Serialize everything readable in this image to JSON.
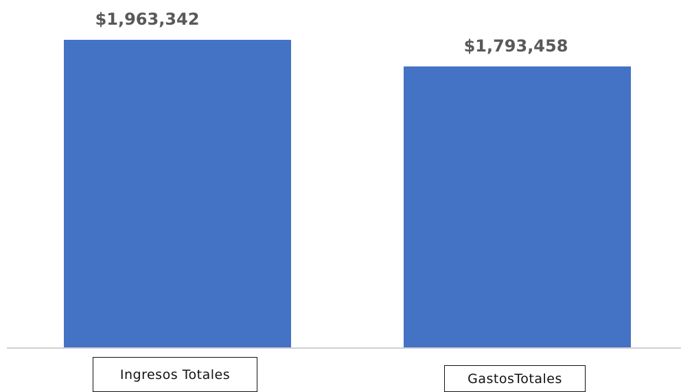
{
  "chart_data": {
    "type": "bar",
    "categories": [
      "Ingresos Totales",
      "GastosTotales"
    ],
    "values": [
      1963342,
      1793458
    ],
    "value_labels": [
      "$1,963,342",
      "$1,793,458"
    ],
    "title": "",
    "xlabel": "",
    "ylabel": "",
    "ylim": [
      0,
      1963342
    ],
    "grid": false,
    "legend": "none",
    "colors": {
      "bar": "#4472C4",
      "baseline": "#d0d0d0",
      "label_text": "#595959"
    }
  }
}
